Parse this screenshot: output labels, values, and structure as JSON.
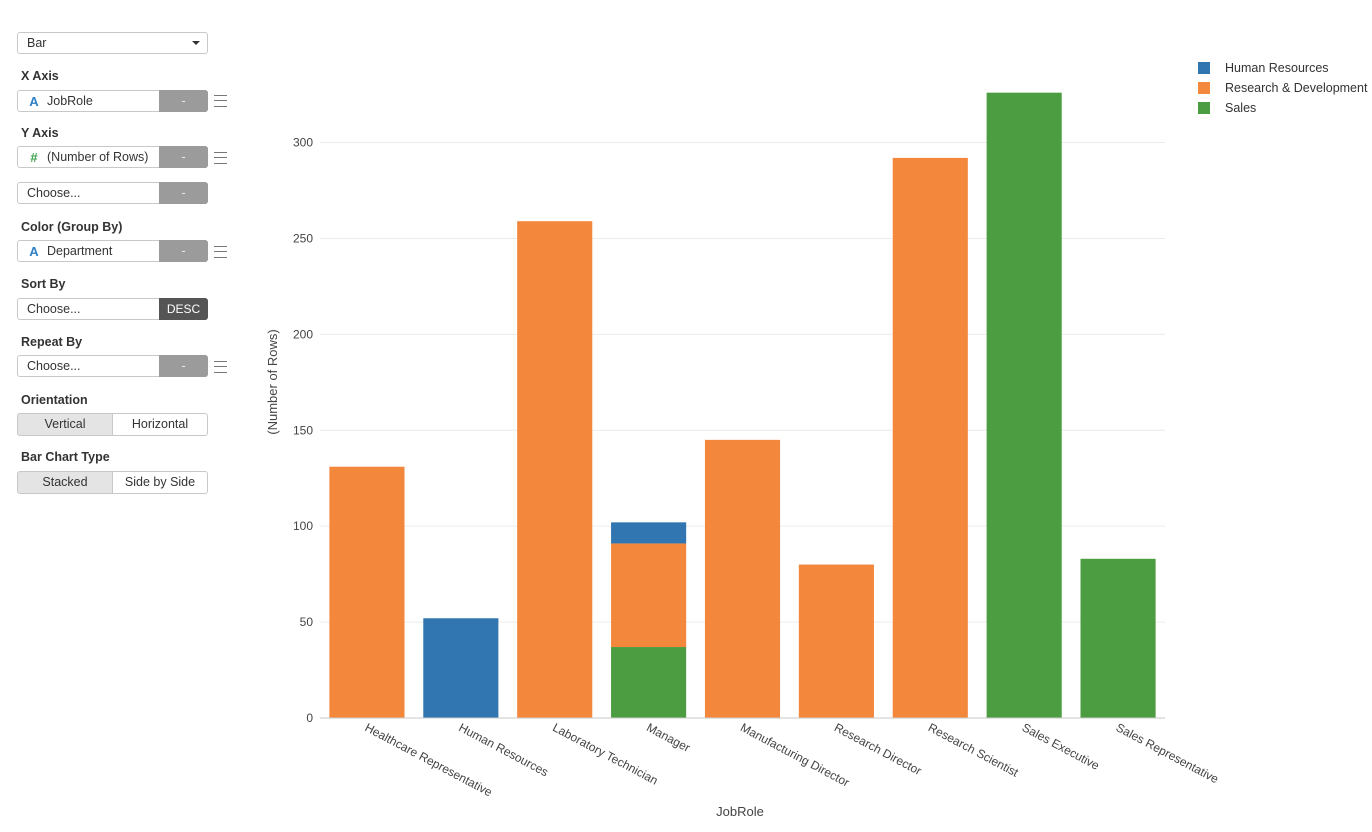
{
  "controls": {
    "chart_type": "Bar",
    "x_axis": {
      "label": "X Axis",
      "field": "JobRole",
      "remove": "-"
    },
    "y_axis": {
      "label": "Y Axis",
      "field": "(Number of Rows)",
      "remove": "-",
      "extra_placeholder": "Choose...",
      "extra_remove": "-"
    },
    "color": {
      "label": "Color (Group By)",
      "field": "Department",
      "remove": "-"
    },
    "sort": {
      "label": "Sort By",
      "placeholder": "Choose...",
      "order": "DESC"
    },
    "repeat": {
      "label": "Repeat By",
      "placeholder": "Choose...",
      "remove": "-"
    },
    "orientation": {
      "label": "Orientation",
      "options": [
        "Vertical",
        "Horizontal"
      ],
      "selected": "Vertical"
    },
    "bar_type": {
      "label": "Bar Chart Type",
      "options": [
        "Stacked",
        "Side by Side"
      ],
      "selected": "Stacked"
    }
  },
  "colors": {
    "Human Resources": "#3276b1",
    "Research & Development": "#f3873c",
    "Sales": "#4c9c41"
  },
  "chart_data": {
    "type": "bar",
    "stacked": true,
    "categories": [
      "Healthcare Representative",
      "Human Resources",
      "Laboratory Technician",
      "Manager",
      "Manufacturing Director",
      "Research Director",
      "Research Scientist",
      "Sales Executive",
      "Sales Representative"
    ],
    "series": [
      {
        "name": "Sales",
        "values": [
          0,
          0,
          0,
          37,
          0,
          0,
          0,
          326,
          83
        ]
      },
      {
        "name": "Research & Development",
        "values": [
          131,
          0,
          259,
          54,
          145,
          80,
          292,
          0,
          0
        ]
      },
      {
        "name": "Human Resources",
        "values": [
          0,
          52,
          0,
          11,
          0,
          0,
          0,
          0,
          0
        ]
      }
    ],
    "legend": [
      "Human Resources",
      "Research & Development",
      "Sales"
    ],
    "legend_position": "top-right",
    "xlabel": "JobRole",
    "ylabel": "(Number of Rows)",
    "ylim": [
      0,
      330
    ],
    "yticks": [
      0,
      50,
      100,
      150,
      200,
      250,
      300
    ],
    "grid": true
  }
}
